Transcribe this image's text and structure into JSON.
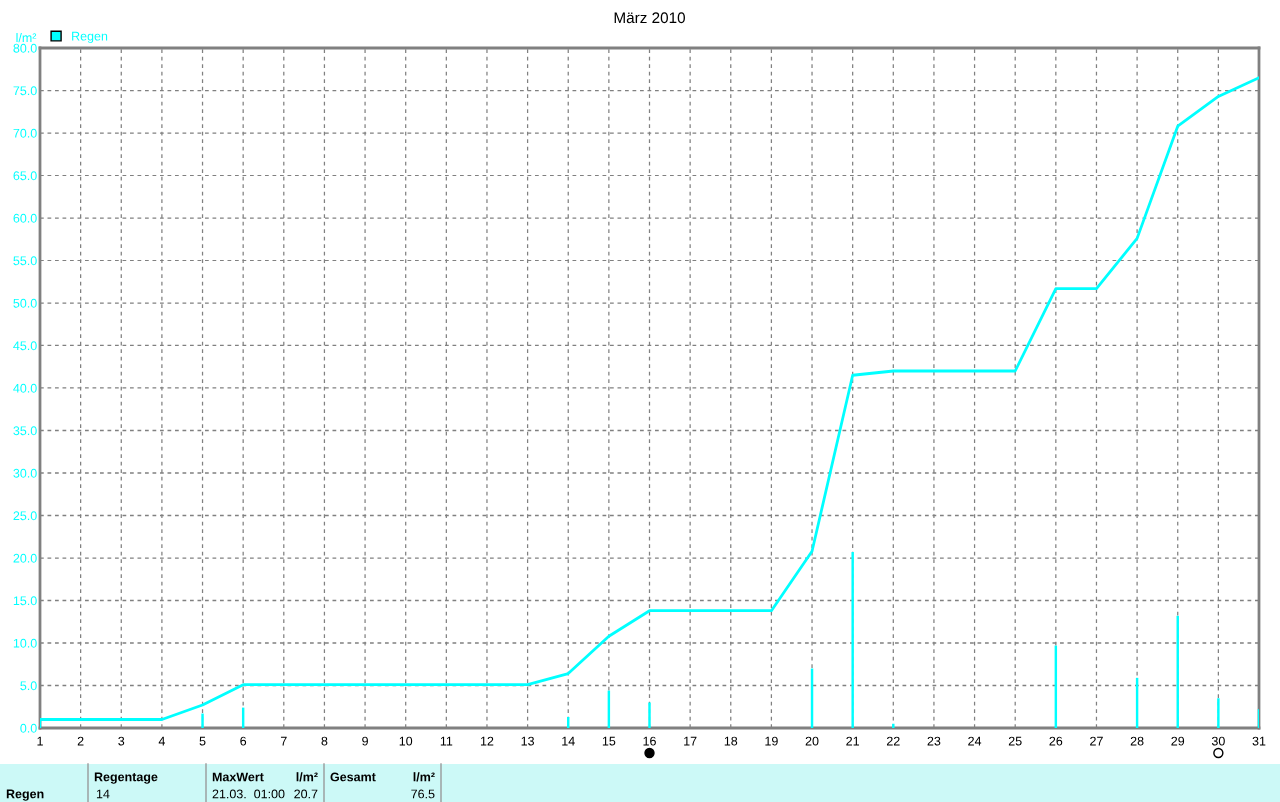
{
  "chart_data": {
    "type": "line",
    "title": "März 2010",
    "ylabel": "l/m²",
    "x": [
      1,
      2,
      3,
      4,
      5,
      6,
      7,
      8,
      9,
      10,
      11,
      12,
      13,
      14,
      15,
      16,
      17,
      18,
      19,
      20,
      21,
      22,
      23,
      24,
      25,
      26,
      27,
      28,
      29,
      30,
      31
    ],
    "series": [
      {
        "name": "Regen",
        "type": "bar",
        "color": "#00ffff",
        "values": [
          1.0,
          null,
          null,
          null,
          1.7,
          2.4,
          null,
          null,
          null,
          null,
          null,
          null,
          null,
          1.3,
          4.4,
          3.0,
          null,
          null,
          null,
          7.0,
          20.7,
          0.5,
          null,
          null,
          null,
          9.7,
          null,
          5.9,
          13.2,
          3.5,
          2.2
        ]
      },
      {
        "color": "#00ffff",
        "values": [
          1.0,
          1.0,
          1.0,
          1.0,
          2.7,
          5.1,
          5.1,
          5.1,
          5.1,
          5.1,
          5.1,
          5.1,
          5.1,
          6.4,
          10.8,
          13.8,
          13.8,
          13.8,
          13.8,
          20.8,
          41.5,
          42.0,
          42.0,
          42.0,
          42.0,
          51.7,
          51.7,
          57.6,
          70.8,
          74.3,
          76.5
        ]
      }
    ],
    "xlim": [
      1,
      31
    ],
    "xticks": [
      1,
      2,
      3,
      4,
      5,
      6,
      7,
      8,
      9,
      10,
      11,
      12,
      13,
      14,
      15,
      16,
      17,
      18,
      19,
      20,
      21,
      22,
      23,
      24,
      25,
      26,
      27,
      28,
      29,
      30,
      31
    ],
    "ylim": [
      0,
      80
    ],
    "yticks": [
      {
        "value": 0,
        "label": "0.0"
      },
      {
        "value": 5,
        "label": "5.0"
      },
      {
        "value": 10,
        "label": "10.0"
      },
      {
        "value": 15,
        "label": "15.0"
      },
      {
        "value": 20,
        "label": "20.0"
      },
      {
        "value": 25,
        "label": "25.0"
      },
      {
        "value": 30,
        "label": "30.0"
      },
      {
        "value": 35,
        "label": "35.0"
      },
      {
        "value": 40,
        "label": "40.0"
      },
      {
        "value": 45,
        "label": "45.0"
      },
      {
        "value": 50,
        "label": "50.0"
      },
      {
        "value": 55,
        "label": "55.0"
      },
      {
        "value": 60,
        "label": "60.0"
      },
      {
        "value": 65,
        "label": "65.0"
      },
      {
        "value": 70,
        "label": "70.0"
      },
      {
        "value": 75,
        "label": "75.0"
      },
      {
        "value": 80,
        "label": "80.0"
      }
    ],
    "grid": true,
    "legend": "top left",
    "line_style": "solid",
    "marker": "none",
    "annotations": [
      "Regen",
      "Regentage",
      "14",
      "MaxWert",
      "21.03.  01:00",
      "l/m²",
      "20.7",
      "Gesamt",
      "l/m²",
      "76.5"
    ]
  }
}
